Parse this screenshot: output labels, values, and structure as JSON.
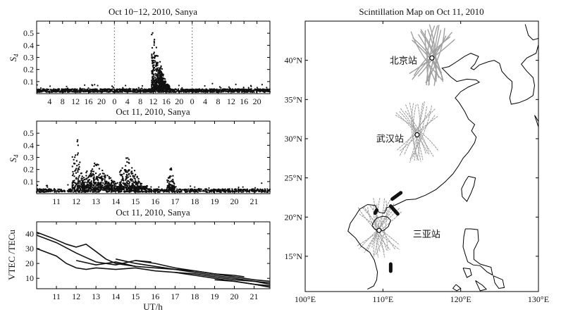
{
  "chart_data": [
    {
      "type": "scatter",
      "title": "Oct 10−12, 2010, Sanya",
      "ylabel": "S",
      "ylabel_sub": "4",
      "xlim": [
        0,
        72
      ],
      "ylim": [
        0,
        0.6
      ],
      "xticks": [
        4,
        8,
        12,
        16,
        20,
        24,
        28,
        32,
        36,
        40,
        44,
        48,
        52,
        56,
        60,
        64,
        68
      ],
      "xtick_labels": [
        "4",
        "8",
        "12",
        "16",
        "20",
        "0",
        "4",
        "8",
        "12",
        "16",
        "20",
        "0",
        "4",
        "8",
        "12",
        "16",
        "20"
      ],
      "yticks": [
        0.1,
        0.2,
        0.3,
        0.4,
        0.5
      ],
      "ytick_labels": [
        "0.1",
        "0.2",
        "0.3",
        "0.4",
        "0.5"
      ],
      "day_boundaries": [
        24,
        48
      ],
      "background_level": 0.03,
      "bursts": [
        {
          "x_start": 35.5,
          "x_end": 41.0,
          "peak_x": 36.0,
          "peak": 0.55
        },
        {
          "x_start": 38.0,
          "x_end": 40.5,
          "peak_x": 38.5,
          "peak": 0.25
        }
      ]
    },
    {
      "type": "scatter",
      "title": "Oct 11, 2010, Sanya",
      "ylabel": "S",
      "ylabel_sub": "4",
      "xlim": [
        10,
        21.8
      ],
      "ylim": [
        0,
        0.6
      ],
      "xticks": [
        11,
        12,
        13,
        14,
        15,
        16,
        17,
        18,
        19,
        20,
        21
      ],
      "xtick_labels": [
        "11",
        "12",
        "13",
        "14",
        "15",
        "16",
        "17",
        "18",
        "19",
        "20",
        "21"
      ],
      "yticks": [
        0.1,
        0.2,
        0.3,
        0.4,
        0.5
      ],
      "ytick_labels": [
        "0.1",
        "0.2",
        "0.3",
        "0.4",
        "0.5"
      ],
      "background_level": 0.03,
      "bursts": [
        {
          "x_start": 11.8,
          "x_end": 12.4,
          "peak_x": 12.0,
          "peak": 0.57
        },
        {
          "x_start": 12.3,
          "x_end": 14.3,
          "peak_x": 13.0,
          "peak": 0.25
        },
        {
          "x_start": 14.2,
          "x_end": 15.6,
          "peak_x": 14.5,
          "peak": 0.35
        },
        {
          "x_start": 16.6,
          "x_end": 17.0,
          "peak_x": 16.8,
          "peak": 0.26
        }
      ]
    },
    {
      "type": "line",
      "title": "Oct 11, 2010, Sanya",
      "xlabel": "UT/h",
      "ylabel": "VTEC /TECu",
      "xlim": [
        10,
        21.8
      ],
      "ylim": [
        3,
        48
      ],
      "xticks": [
        11,
        12,
        13,
        14,
        15,
        16,
        17,
        18,
        19,
        20,
        21
      ],
      "xtick_labels": [
        "11",
        "12",
        "13",
        "14",
        "15",
        "16",
        "17",
        "18",
        "19",
        "20",
        "21"
      ],
      "yticks": [
        10,
        20,
        30,
        40
      ],
      "ytick_labels": [
        "10",
        "20",
        "30",
        "40"
      ],
      "series": [
        {
          "x": [
            10.0,
            10.8,
            11.5,
            12.0,
            12.5,
            13.0,
            13.5,
            14.0,
            15.0
          ],
          "y": [
            41,
            37,
            33,
            31,
            33,
            28,
            23,
            20,
            18
          ]
        },
        {
          "x": [
            10.0,
            11.0,
            12.0,
            12.5,
            13.0,
            14.0,
            15.0,
            15.8
          ],
          "y": [
            39,
            34,
            27,
            24,
            21,
            19,
            22,
            21
          ]
        },
        {
          "x": [
            10.0,
            11.0,
            11.5,
            12.0,
            12.5,
            13.0,
            14.0,
            15.0,
            16.0,
            17.0,
            18.0,
            19.0,
            20.0,
            21.0,
            21.8
          ],
          "y": [
            30,
            25,
            20,
            17,
            16,
            17,
            16,
            17,
            15,
            14,
            13,
            11,
            9,
            8,
            6
          ]
        },
        {
          "x": [
            12.0,
            13.0,
            14.0,
            15.0,
            16.0,
            17.0,
            18.0,
            19.0,
            20.0,
            21.0,
            21.8
          ],
          "y": [
            22,
            19,
            21,
            18,
            17,
            16,
            14,
            12,
            10,
            8,
            7
          ]
        },
        {
          "x": [
            14.0,
            15.0,
            16.0,
            17.0,
            18.0,
            19.0,
            20.0,
            21.0,
            21.8
          ],
          "y": [
            23,
            20,
            18,
            16,
            15,
            13,
            11,
            9,
            8
          ]
        },
        {
          "x": [
            15.0,
            16.0,
            17.0,
            18.0,
            19.0,
            20.0,
            20.5
          ],
          "y": [
            22,
            20,
            17,
            15,
            13,
            12,
            11
          ]
        },
        {
          "x": [
            17.0,
            18.0,
            19.0,
            20.0,
            21.0,
            21.8
          ],
          "y": [
            14,
            12,
            10,
            8,
            6,
            4
          ]
        },
        {
          "x": [
            19.0,
            20.0,
            21.0,
            21.8
          ],
          "y": [
            9,
            8,
            6,
            5
          ]
        }
      ]
    },
    {
      "type": "map",
      "title": "Scintillation Map on Oct 11, 2010",
      "xlim": [
        100,
        130
      ],
      "ylim": [
        10.5,
        45
      ],
      "xticks": [
        100,
        110,
        120,
        130
      ],
      "xtick_labels": [
        "100°E",
        "110°E",
        "120°E",
        "130°E"
      ],
      "yticks": [
        15,
        20,
        25,
        30,
        35,
        40
      ],
      "ytick_labels": [
        "15°N",
        "20°N",
        "25°N",
        "30°N",
        "35°N",
        "40°N"
      ],
      "stations": [
        {
          "name": "北京站",
          "lon": 116.3,
          "lat": 40.3
        },
        {
          "name": "武汉站",
          "lon": 114.4,
          "lat": 30.5
        },
        {
          "name": "三亚站",
          "lon": 109.5,
          "lat": 18.3
        }
      ],
      "coast": [
        [
          108.0,
          21.6
        ],
        [
          109.0,
          21.5
        ],
        [
          109.5,
          20.6
        ],
        [
          110.2,
          20.5
        ],
        [
          110.5,
          21.2
        ],
        [
          111.5,
          21.5
        ],
        [
          113.0,
          22.2
        ],
        [
          114.2,
          22.3
        ],
        [
          115.5,
          22.8
        ],
        [
          116.8,
          23.5
        ],
        [
          118.0,
          24.5
        ],
        [
          119.0,
          25.5
        ],
        [
          119.7,
          26.5
        ],
        [
          120.3,
          27.5
        ],
        [
          121.0,
          28.3
        ],
        [
          121.8,
          29.5
        ],
        [
          122.0,
          30.2
        ],
        [
          121.4,
          31.0
        ],
        [
          121.8,
          31.8
        ],
        [
          121.0,
          32.5
        ],
        [
          120.5,
          33.5
        ],
        [
          119.8,
          34.6
        ],
        [
          119.3,
          35.2
        ],
        [
          120.0,
          36.0
        ],
        [
          121.0,
          36.6
        ],
        [
          122.4,
          37.2
        ],
        [
          122.0,
          37.5
        ],
        [
          120.8,
          37.6
        ],
        [
          119.5,
          37.3
        ],
        [
          118.7,
          37.9
        ],
        [
          118.0,
          38.6
        ],
        [
          117.6,
          39.0
        ],
        [
          118.5,
          39.2
        ],
        [
          119.3,
          39.7
        ],
        [
          120.5,
          40.5
        ],
        [
          121.3,
          40.9
        ],
        [
          122.3,
          40.5
        ],
        [
          121.8,
          39.5
        ],
        [
          121.3,
          39.0
        ],
        [
          121.7,
          38.8
        ],
        [
          122.4,
          39.4
        ],
        [
          123.5,
          39.8
        ],
        [
          124.3,
          40.0
        ],
        [
          125.0,
          39.6
        ],
        [
          125.3,
          38.6
        ],
        [
          126.0,
          37.8
        ],
        [
          126.6,
          37.3
        ],
        [
          126.6,
          36.5
        ],
        [
          126.3,
          35.2
        ],
        [
          126.5,
          34.4
        ],
        [
          127.5,
          34.6
        ],
        [
          128.5,
          35.0
        ],
        [
          129.3,
          35.5
        ],
        [
          129.5,
          36.8
        ],
        [
          129.3,
          37.8
        ],
        [
          128.5,
          38.6
        ],
        [
          127.8,
          39.5
        ],
        [
          128.5,
          40.3
        ],
        [
          129.7,
          40.9
        ],
        [
          130.0,
          42.0
        ]
      ],
      "coast_indochina": [
        [
          108.0,
          21.6
        ],
        [
          107.0,
          21.0
        ],
        [
          106.5,
          20.2
        ],
        [
          105.8,
          19.2
        ],
        [
          105.5,
          18.2
        ],
        [
          106.5,
          17.3
        ],
        [
          107.2,
          16.3
        ],
        [
          108.3,
          15.5
        ],
        [
          108.9,
          14.5
        ],
        [
          109.3,
          13.0
        ],
        [
          109.2,
          12.0
        ],
        [
          108.8,
          11.2
        ],
        [
          108.0,
          10.8
        ]
      ],
      "hainan": [
        [
          108.7,
          19.2
        ],
        [
          109.2,
          19.9
        ],
        [
          110.0,
          20.1
        ],
        [
          110.6,
          20.0
        ],
        [
          111.0,
          19.6
        ],
        [
          110.7,
          18.8
        ],
        [
          110.1,
          18.3
        ],
        [
          109.5,
          18.2
        ],
        [
          108.9,
          18.5
        ],
        [
          108.6,
          18.9
        ],
        [
          108.7,
          19.2
        ]
      ],
      "taiwan": [
        [
          121.0,
          25.2
        ],
        [
          121.9,
          25.0
        ],
        [
          121.7,
          24.0
        ],
        [
          121.3,
          23.0
        ],
        [
          120.8,
          22.0
        ],
        [
          120.2,
          22.6
        ],
        [
          120.1,
          23.6
        ],
        [
          120.6,
          24.6
        ],
        [
          121.0,
          25.2
        ]
      ],
      "japan": [
        [
          129.5,
          33.0
        ],
        [
          130.0,
          31.5
        ],
        [
          130.3,
          31.0
        ],
        [
          130.0,
          32.2
        ],
        [
          129.7,
          32.7
        ],
        [
          129.5,
          33.0
        ]
      ],
      "japan_north": [
        [
          128.3,
          44.6
        ],
        [
          128.7,
          43.2
        ],
        [
          129.3,
          42.6
        ],
        [
          130.0,
          42.8
        ]
      ],
      "philippines": [
        [
          120.6,
          18.5
        ],
        [
          121.3,
          18.5
        ],
        [
          122.2,
          18.4
        ],
        [
          122.3,
          17.0
        ],
        [
          121.7,
          15.8
        ],
        [
          121.7,
          14.6
        ],
        [
          122.5,
          14.0
        ],
        [
          123.9,
          13.6
        ],
        [
          124.1,
          12.6
        ],
        [
          123.4,
          13.0
        ],
        [
          122.5,
          13.8
        ],
        [
          121.6,
          13.9
        ],
        [
          120.9,
          14.3
        ],
        [
          120.6,
          15.2
        ],
        [
          120.3,
          16.2
        ],
        [
          120.4,
          17.5
        ],
        [
          120.6,
          18.5
        ]
      ],
      "visayas": [
        [
          121.9,
          11.9
        ],
        [
          122.8,
          11.3
        ],
        [
          123.3,
          10.8
        ],
        [
          122.5,
          10.6
        ],
        [
          121.9,
          11.9
        ]
      ],
      "visayas2": [
        [
          124.2,
          12.5
        ],
        [
          125.4,
          12.0
        ],
        [
          125.6,
          11.0
        ],
        [
          124.9,
          10.9
        ],
        [
          124.4,
          11.6
        ],
        [
          124.2,
          12.5
        ]
      ],
      "mindoro": [
        [
          120.3,
          13.5
        ],
        [
          121.2,
          13.4
        ],
        [
          121.4,
          12.6
        ],
        [
          120.8,
          12.3
        ],
        [
          120.3,
          13.5
        ]
      ],
      "palawan": [
        [
          119.4,
          11.4
        ],
        [
          120.0,
          10.9
        ],
        [
          119.5,
          10.6
        ],
        [
          119.0,
          10.9
        ],
        [
          119.4,
          11.4
        ]
      ],
      "tracks_gray": "#a0a0a0",
      "tracks_black": "#111111",
      "scint_segments": [
        [
          [
            111.2,
            22.3
          ],
          [
            112.3,
            23.1
          ]
        ],
        [
          [
            111.0,
            21.4
          ],
          [
            111.9,
            20.4
          ]
        ],
        [
          [
            111.0,
            14.0
          ],
          [
            111.0,
            13.1
          ]
        ],
        [
          [
            109.0,
            20.5
          ],
          [
            109.2,
            20.9
          ]
        ]
      ]
    }
  ]
}
